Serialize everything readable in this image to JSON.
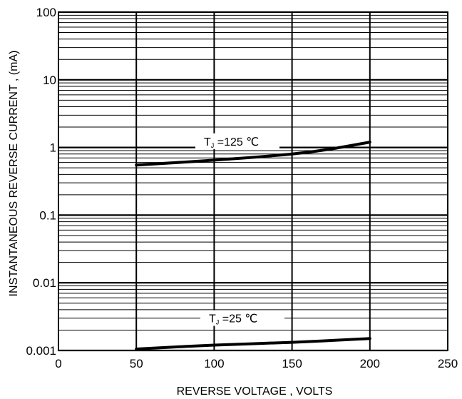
{
  "chart_data": {
    "type": "line",
    "title": "",
    "xlabel": "REVERSE VOLTAGE , VOLTS",
    "ylabel": "INSTANTANEOUS REVERSE CURRENT , (mA)",
    "x_scale": "linear",
    "y_scale": "log",
    "xlim": [
      0,
      250
    ],
    "ylim": [
      0.001,
      100
    ],
    "x_ticks": [
      0,
      50,
      100,
      150,
      200,
      250
    ],
    "x_tick_labels": [
      "0",
      "50",
      "100",
      "150",
      "200",
      "250"
    ],
    "y_ticks": [
      0.001,
      0.01,
      0.1,
      1,
      10,
      100
    ],
    "y_tick_labels": [
      "0.001",
      "0.01",
      "0.1",
      "1",
      "10",
      "100"
    ],
    "grid": true,
    "series": [
      {
        "label_main": "T",
        "label_sub": "J",
        "label_rest": " =125 ℃",
        "x": [
          50,
          100,
          150,
          175,
          200
        ],
        "y": [
          0.55,
          0.65,
          0.8,
          0.95,
          1.2
        ]
      },
      {
        "label_main": "T",
        "label_sub": "J",
        "label_rest": " =25 ℃",
        "x": [
          50,
          100,
          150,
          200
        ],
        "y": [
          0.00105,
          0.0012,
          0.00132,
          0.0015
        ]
      }
    ]
  }
}
